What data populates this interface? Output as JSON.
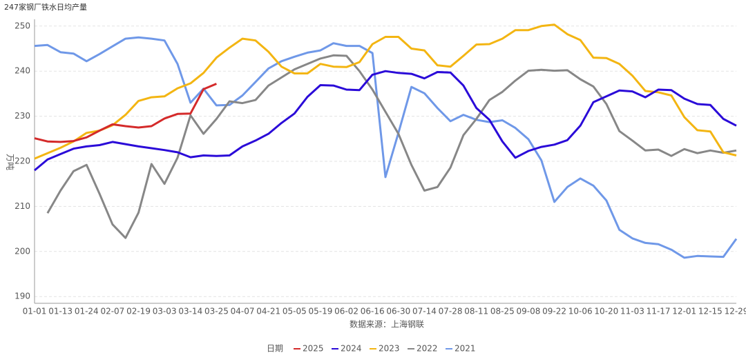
{
  "chart_data": {
    "type": "line",
    "title": "247家钢厂铁水日均产量",
    "y_label": "万吨",
    "x_label": "数据来源：上海钢联",
    "legend_title": "日期",
    "legend": "bottom",
    "grid": true,
    "categories": [
      "01-01",
      null,
      "01-13",
      null,
      "01-24",
      null,
      "02-07",
      null,
      "02-19",
      null,
      "03-03",
      null,
      "03-14",
      null,
      "03-25",
      null,
      "04-07",
      null,
      "04-21",
      null,
      "05-05",
      null,
      "05-19",
      null,
      "06-02",
      null,
      "06-16",
      null,
      "06-30",
      null,
      "07-14",
      null,
      "07-28",
      null,
      "08-11",
      null,
      "08-25",
      null,
      "09-08",
      null,
      "09-22",
      null,
      "10-06",
      null,
      "10-20",
      null,
      "11-03",
      null,
      "11-17",
      null,
      "12-01",
      null,
      "12-15",
      null,
      "12-29"
    ],
    "ylim": [
      188.5,
      251.5
    ],
    "yticks": [
      190,
      200,
      210,
      220,
      230,
      240,
      250
    ],
    "series": [
      {
        "name": "2025",
        "color": "#d42a2a",
        "values": [
          225.1,
          224.4,
          224.3,
          224.5,
          225.3,
          226.8,
          228.2,
          227.8,
          227.5,
          227.8,
          229.5,
          230.5,
          230.6,
          236,
          237.2,
          null,
          null,
          null,
          null,
          null,
          null,
          null,
          null,
          null,
          null,
          null,
          null,
          null,
          null,
          null,
          null,
          null,
          null,
          null,
          null,
          null,
          null,
          null,
          null,
          null,
          null,
          null,
          null,
          null,
          null,
          null,
          null,
          null,
          null,
          null,
          null,
          null,
          null,
          null,
          null
        ]
      },
      {
        "name": "2024",
        "color": "#2a0ad8",
        "values": [
          218,
          220.4,
          221.6,
          222.8,
          223.3,
          223.6,
          224.3,
          223.8,
          223.3,
          222.9,
          222.5,
          222,
          220.9,
          221.3,
          221.2,
          221.3,
          223.3,
          224.6,
          226.1,
          228.5,
          230.6,
          234.3,
          236.9,
          236.8,
          235.9,
          235.8,
          239.2,
          240,
          239.6,
          239.4,
          238.4,
          239.8,
          239.7,
          236.8,
          231.8,
          229.2,
          224.4,
          220.8,
          222.3,
          223.2,
          223.7,
          224.7,
          227.9,
          233.1,
          234.4,
          235.7,
          235.5,
          234.2,
          235.9,
          235.8,
          233.9,
          232.7,
          232.5,
          229.4,
          227.9
        ]
      },
      {
        "name": "2023",
        "color": "#f3b512",
        "values": [
          220.6,
          221.8,
          223,
          224.4,
          226.3,
          226.8,
          228,
          230.3,
          233.4,
          234.2,
          234.4,
          236.2,
          237.3,
          239.6,
          243,
          245.2,
          247.2,
          246.8,
          244.3,
          241,
          239.5,
          239.5,
          241.6,
          241,
          240.9,
          242,
          246,
          247.6,
          247.6,
          245,
          244.6,
          241.3,
          241,
          243.4,
          245.9,
          246,
          247.2,
          249.1,
          249.1,
          250,
          250.3,
          248.2,
          246.9,
          243,
          242.9,
          241.6,
          239,
          235.6,
          235.3,
          234.6,
          229.8,
          226.9,
          226.6,
          222,
          221.3
        ]
      },
      {
        "name": "2022",
        "color": "#878787",
        "values": [
          null,
          208.5,
          213.5,
          217.8,
          219.2,
          212.8,
          206,
          203,
          208.6,
          219.4,
          215,
          220.8,
          230.2,
          226.1,
          229.4,
          233.3,
          232.9,
          233.6,
          236.8,
          238.6,
          240.4,
          241.6,
          242.8,
          243.5,
          243.4,
          240,
          235.9,
          231,
          226.1,
          219.2,
          213.5,
          214.3,
          218.6,
          225.8,
          229.4,
          233.6,
          235.4,
          237.9,
          240.1,
          240.3,
          240.1,
          240.2,
          238.2,
          236.6,
          232.7,
          226.7,
          224.6,
          222.4,
          222.6,
          221.2,
          222.7,
          221.8,
          222.4,
          221.9,
          222.4
        ]
      },
      {
        "name": "2021",
        "color": "#6f98e8",
        "values": [
          245.6,
          245.8,
          244.2,
          243.9,
          242.2,
          243.8,
          245.5,
          247.2,
          247.5,
          247.2,
          246.8,
          241.6,
          233,
          236.1,
          232.4,
          232.5,
          234.6,
          237.6,
          240.6,
          242.2,
          243.2,
          244.1,
          244.6,
          246.2,
          245.6,
          245.6,
          244,
          216.5,
          226.3,
          236.5,
          235.1,
          231.8,
          228.9,
          230.3,
          229.2,
          228.7,
          229.1,
          227.4,
          224.9,
          220.2,
          211,
          214.3,
          216.2,
          214.6,
          211.3,
          204.8,
          202.9,
          201.9,
          201.6,
          200.4,
          198.6,
          199,
          198.9,
          198.8,
          202.8
        ]
      }
    ]
  }
}
